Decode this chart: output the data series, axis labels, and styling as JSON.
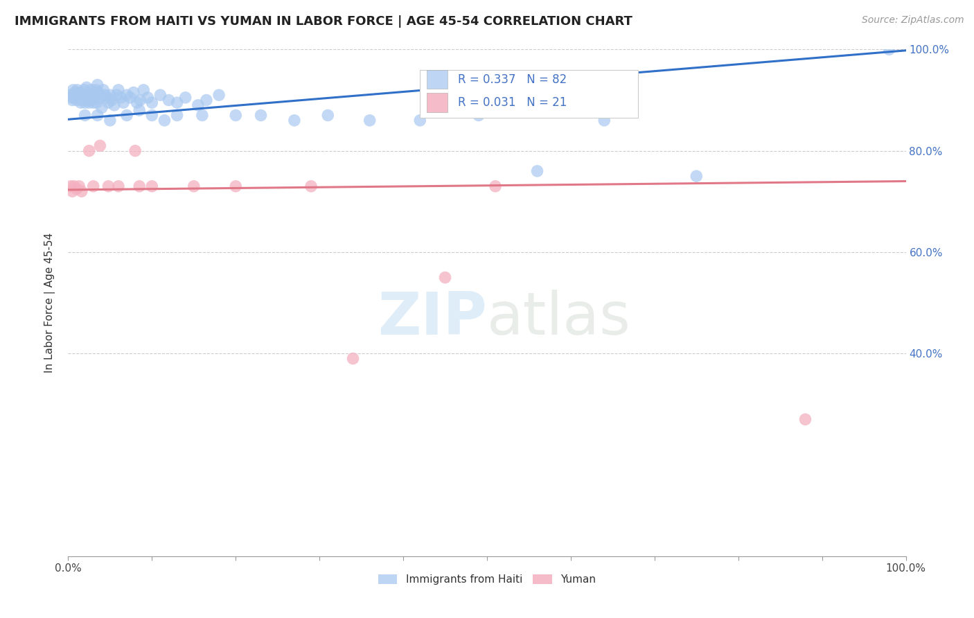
{
  "title": "IMMIGRANTS FROM HAITI VS YUMAN IN LABOR FORCE | AGE 45-54 CORRELATION CHART",
  "source": "Source: ZipAtlas.com",
  "ylabel": "In Labor Force | Age 45-54",
  "xlim": [
    0.0,
    1.0
  ],
  "ylim": [
    0.0,
    1.0
  ],
  "x_tick_labels": [
    "0.0%",
    "100.0%"
  ],
  "y_tick_labels_right": [
    "40.0%",
    "60.0%",
    "80.0%",
    "100.0%"
  ],
  "y_ticks": [
    0.4,
    0.6,
    0.8,
    1.0
  ],
  "legend_haiti": "Immigrants from Haiti",
  "legend_yuman": "Yuman",
  "R_haiti": "0.337",
  "N_haiti": "82",
  "R_yuman": "0.031",
  "N_yuman": "21",
  "haiti_color": "#a8c8f0",
  "yuman_color": "#f4b0c0",
  "haiti_line_color": "#3070c8",
  "yuman_line_color": "#e07888",
  "watermark_text": "ZIPatlas",
  "haiti_x": [
    0.002,
    0.004,
    0.005,
    0.006,
    0.007,
    0.008,
    0.009,
    0.01,
    0.011,
    0.012,
    0.013,
    0.014,
    0.015,
    0.016,
    0.017,
    0.018,
    0.019,
    0.02,
    0.021,
    0.022,
    0.023,
    0.024,
    0.025,
    0.026,
    0.027,
    0.028,
    0.029,
    0.03,
    0.031,
    0.032,
    0.033,
    0.034,
    0.035,
    0.036,
    0.038,
    0.04,
    0.042,
    0.044,
    0.046,
    0.048,
    0.05,
    0.052,
    0.055,
    0.058,
    0.06,
    0.063,
    0.066,
    0.07,
    0.074,
    0.078,
    0.082,
    0.086,
    0.09,
    0.095,
    0.1,
    0.11,
    0.12,
    0.13,
    0.14,
    0.155,
    0.165,
    0.18,
    0.02,
    0.035,
    0.05,
    0.07,
    0.085,
    0.1,
    0.115,
    0.13,
    0.16,
    0.2,
    0.23,
    0.27,
    0.31,
    0.36,
    0.42,
    0.49,
    0.56,
    0.64,
    0.75,
    0.98
  ],
  "haiti_y": [
    0.91,
    0.905,
    0.9,
    0.92,
    0.91,
    0.915,
    0.905,
    0.9,
    0.92,
    0.91,
    0.905,
    0.915,
    0.895,
    0.9,
    0.91,
    0.905,
    0.92,
    0.895,
    0.91,
    0.925,
    0.905,
    0.9,
    0.895,
    0.91,
    0.92,
    0.9,
    0.905,
    0.895,
    0.91,
    0.905,
    0.92,
    0.895,
    0.93,
    0.915,
    0.905,
    0.885,
    0.92,
    0.91,
    0.905,
    0.895,
    0.91,
    0.9,
    0.89,
    0.91,
    0.92,
    0.905,
    0.895,
    0.91,
    0.905,
    0.915,
    0.895,
    0.9,
    0.92,
    0.905,
    0.895,
    0.91,
    0.9,
    0.895,
    0.905,
    0.89,
    0.9,
    0.91,
    0.87,
    0.87,
    0.86,
    0.87,
    0.88,
    0.87,
    0.86,
    0.87,
    0.87,
    0.87,
    0.87,
    0.86,
    0.87,
    0.86,
    0.86,
    0.87,
    0.76,
    0.86,
    0.75,
    1.0
  ],
  "yuman_x": [
    0.003,
    0.005,
    0.007,
    0.01,
    0.013,
    0.016,
    0.025,
    0.03,
    0.038,
    0.048,
    0.06,
    0.08,
    0.085,
    0.1,
    0.15,
    0.2,
    0.29,
    0.34,
    0.45,
    0.51,
    0.88
  ],
  "yuman_y": [
    0.73,
    0.72,
    0.73,
    0.725,
    0.73,
    0.72,
    0.8,
    0.73,
    0.81,
    0.73,
    0.73,
    0.8,
    0.73,
    0.73,
    0.73,
    0.73,
    0.73,
    0.39,
    0.55,
    0.73,
    0.27
  ],
  "haiti_line_x": [
    0.0,
    1.0
  ],
  "haiti_line_y": [
    0.862,
    0.998
  ],
  "yuman_line_x": [
    0.0,
    1.0
  ],
  "yuman_line_y": [
    0.723,
    0.74
  ]
}
